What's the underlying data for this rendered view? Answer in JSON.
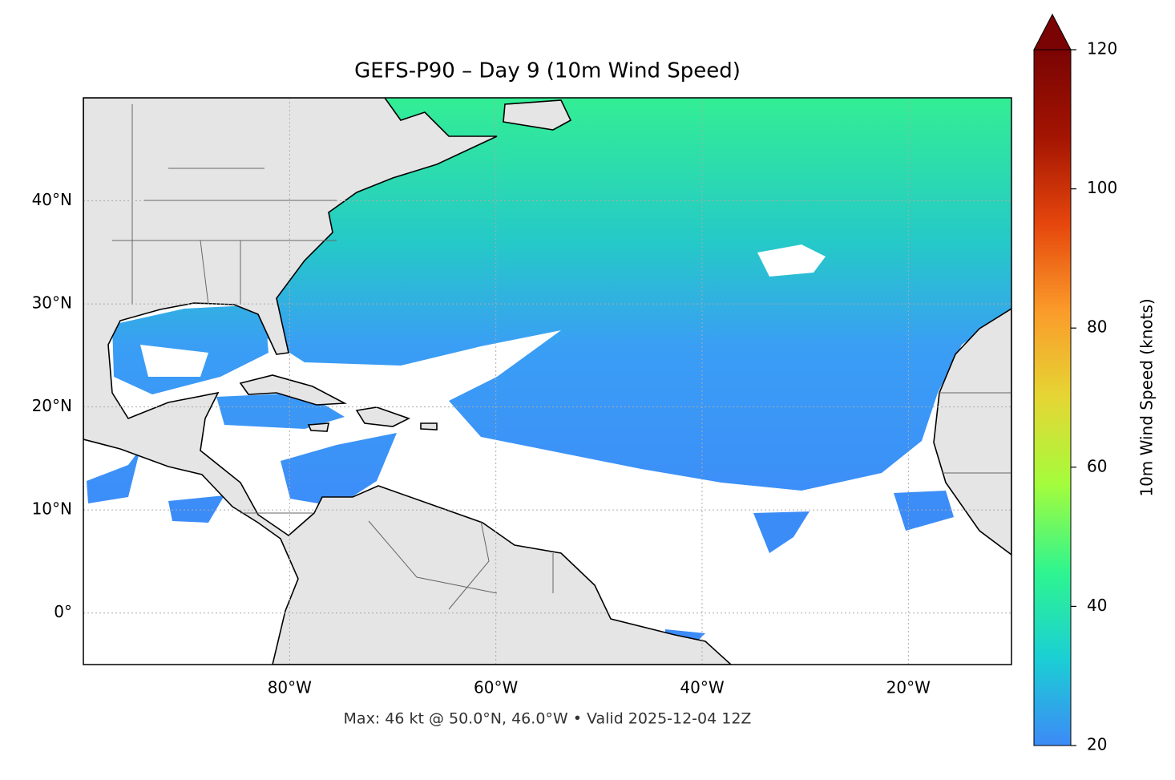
{
  "chart_data": {
    "type": "map",
    "title": "GEFS-P90 – Day 9 (10m Wind Speed)",
    "footer": "Max: 46 kt @ 50.0°N, 46.0°W • Valid 2025-12-04 12Z",
    "xlim": [
      -100,
      -10
    ],
    "ylim": [
      -5,
      50
    ],
    "xticks": [
      {
        "value": -80,
        "label": "80°W"
      },
      {
        "value": -60,
        "label": "60°W"
      },
      {
        "value": -40,
        "label": "40°W"
      },
      {
        "value": -20,
        "label": "20°W"
      }
    ],
    "yticks": [
      {
        "value": 0,
        "label": "0°"
      },
      {
        "value": 10,
        "label": "10°N"
      },
      {
        "value": 20,
        "label": "20°N"
      },
      {
        "value": 30,
        "label": "30°N"
      },
      {
        "value": 40,
        "label": "40°N"
      }
    ],
    "grid": true,
    "colorbar": {
      "label": "10m Wind Speed (knots)",
      "lim": [
        20,
        120
      ],
      "ticks": [
        20,
        40,
        60,
        80,
        100,
        120
      ],
      "colors": [
        "#3d8af7",
        "#1bcfd4",
        "#2ff58f",
        "#a4fc3c",
        "#e5d634",
        "#fb9b2a",
        "#e5460c",
        "#a31402",
        "#7a0403"
      ],
      "extend": "max"
    }
  }
}
